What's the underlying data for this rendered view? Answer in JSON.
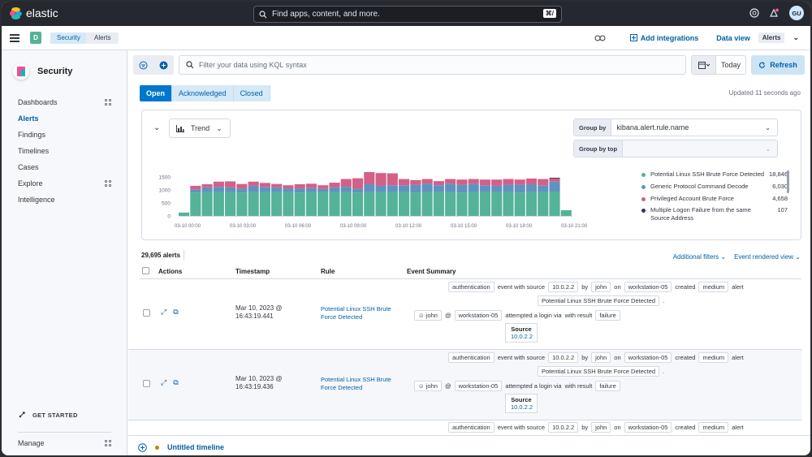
{
  "brand": {
    "name": "elastic"
  },
  "global_search": {
    "placeholder": "Find apps, content, and more.",
    "shortcut": "⌘/"
  },
  "user": {
    "initials": "GU"
  },
  "space": {
    "letter": "D"
  },
  "breadcrumbs": [
    "Security",
    "Alerts"
  ],
  "header_actions": {
    "add_integrations": "Add integrations",
    "data_view_label": "Data view",
    "data_view_value": "Alerts"
  },
  "sidebar": {
    "title": "Security",
    "items": [
      {
        "label": "Dashboards",
        "has_grid": true
      },
      {
        "label": "Alerts",
        "active": true
      },
      {
        "label": "Findings"
      },
      {
        "label": "Timelines"
      },
      {
        "label": "Cases"
      },
      {
        "label": "Explore",
        "has_grid": true
      },
      {
        "label": "Intelligence"
      }
    ],
    "get_started": "GET STARTED",
    "manage": "Manage"
  },
  "filter": {
    "kql_placeholder": "Filter your data using KQL syntax",
    "date": "Today",
    "refresh": "Refresh"
  },
  "status_tabs": [
    "Open",
    "Acknowledged",
    "Closed"
  ],
  "updated": "Updated 11 seconds ago",
  "chart_panel": {
    "trend_label": "Trend",
    "group_by_label": "Group by",
    "group_by_value": "kibana.alert.rule.name",
    "group_by_top_label": "Group by top"
  },
  "chart_data": {
    "type": "bar",
    "stacked": true,
    "ylim": [
      0,
      1500
    ],
    "yticks": [
      "1500",
      "1000",
      "500",
      "0"
    ],
    "xticks": [
      "03-10 00:00",
      "03-10 03:00",
      "03-10 06:00",
      "03-10 09:00",
      "03-10 12:00",
      "03-10 15:00",
      "03-10 18:00",
      "03-10 21:00"
    ],
    "series": [
      {
        "name": "Potential Linux SSH Brute Force Detected",
        "color": "#54b399",
        "values": [
          130,
          900,
          920,
          920,
          920,
          900,
          920,
          920,
          920,
          920,
          900,
          920,
          920,
          920,
          920,
          900,
          920,
          920,
          920,
          920,
          900,
          920,
          920,
          920,
          900,
          920,
          920,
          920,
          920,
          900,
          920,
          920,
          920,
          220
        ]
      },
      {
        "name": "Generic Protocol Command Decode",
        "color": "#6092c0",
        "values": [
          0,
          120,
          180,
          200,
          180,
          150,
          240,
          200,
          180,
          140,
          160,
          150,
          120,
          180,
          200,
          150,
          300,
          250,
          260,
          260,
          300,
          320,
          260,
          320,
          300,
          320,
          260,
          240,
          280,
          300,
          300,
          260,
          400,
          0
        ]
      },
      {
        "name": "Privileged Account Brute Force",
        "color": "#d36086",
        "values": [
          0,
          140,
          120,
          200,
          230,
          180,
          160,
          150,
          130,
          120,
          160,
          170,
          140,
          180,
          300,
          400,
          470,
          480,
          460,
          240,
          180,
          180,
          160,
          180,
          200,
          180,
          220,
          240,
          220,
          200,
          220,
          240,
          120,
          0
        ]
      },
      {
        "name": "Multiple Logon Failure from the same Source Address",
        "color": "#3a2e63",
        "values": [
          0,
          0,
          0,
          0,
          0,
          0,
          0,
          0,
          0,
          0,
          0,
          0,
          0,
          0,
          0,
          0,
          0,
          0,
          0,
          0,
          0,
          0,
          0,
          0,
          0,
          0,
          0,
          0,
          0,
          0,
          0,
          0,
          30,
          0
        ]
      }
    ]
  },
  "legend": [
    {
      "name": "Potential Linux SSH Brute Force Detected",
      "value": "18,846",
      "color": "#54b399"
    },
    {
      "name": "Generic Protocol Command Decode",
      "value": "6,030",
      "color": "#6092c0"
    },
    {
      "name": "Privileged Account Brute Force",
      "value": "4,658",
      "color": "#d36086"
    },
    {
      "name": "Multiple Logon Failure from the same Source Address",
      "value": "107",
      "color": "#3a2e63"
    }
  ],
  "table": {
    "count": "29,695 alerts",
    "additional_filters": "Additional filters",
    "event_rendered_view": "Event rendered view",
    "columns": [
      "Actions",
      "Timestamp",
      "Rule",
      "Event Summary"
    ],
    "rows": [
      {
        "timestamp": "Mar 10, 2023 @ 16:43:19.441",
        "rule": "Potential Linux SSH Brute Force Detected",
        "module": "authentication",
        "source_text": "event with source",
        "ip": "10.0.2.2",
        "by": "by",
        "user": "john",
        "on": "on",
        "host": "workstation-05",
        "created": "created",
        "severity": "medium",
        "alert": "alert",
        "rule_tag": "Potential Linux SSH Brute Force Detected",
        "at": "@",
        "attempted": "attempted a login via",
        "with_result": "with result",
        "result": "failure",
        "source_label": "Source",
        "source_ip": "10.0.2.2"
      },
      {
        "timestamp": "Mar 10, 2023 @ 16:43:19.436",
        "rule": "Potential Linux SSH Brute Force Detected",
        "module": "authentication",
        "source_text": "event with source",
        "ip": "10.0.2.2",
        "by": "by",
        "user": "john",
        "on": "on",
        "host": "workstation-05",
        "created": "created",
        "severity": "medium",
        "alert": "alert",
        "rule_tag": "Potential Linux SSH Brute Force Detected",
        "at": "@",
        "attempted": "attempted a login via",
        "with_result": "with result",
        "result": "failure",
        "source_label": "Source",
        "source_ip": "10.0.2.2"
      },
      {
        "module": "authentication",
        "source_text": "event with source",
        "ip": "10.0.2.2",
        "by": "by",
        "user": "john",
        "on": "on",
        "host": "workstation-05",
        "created": "created",
        "severity": "medium",
        "alert": "alert"
      }
    ]
  },
  "timeline": {
    "name": "Untitled timeline"
  }
}
